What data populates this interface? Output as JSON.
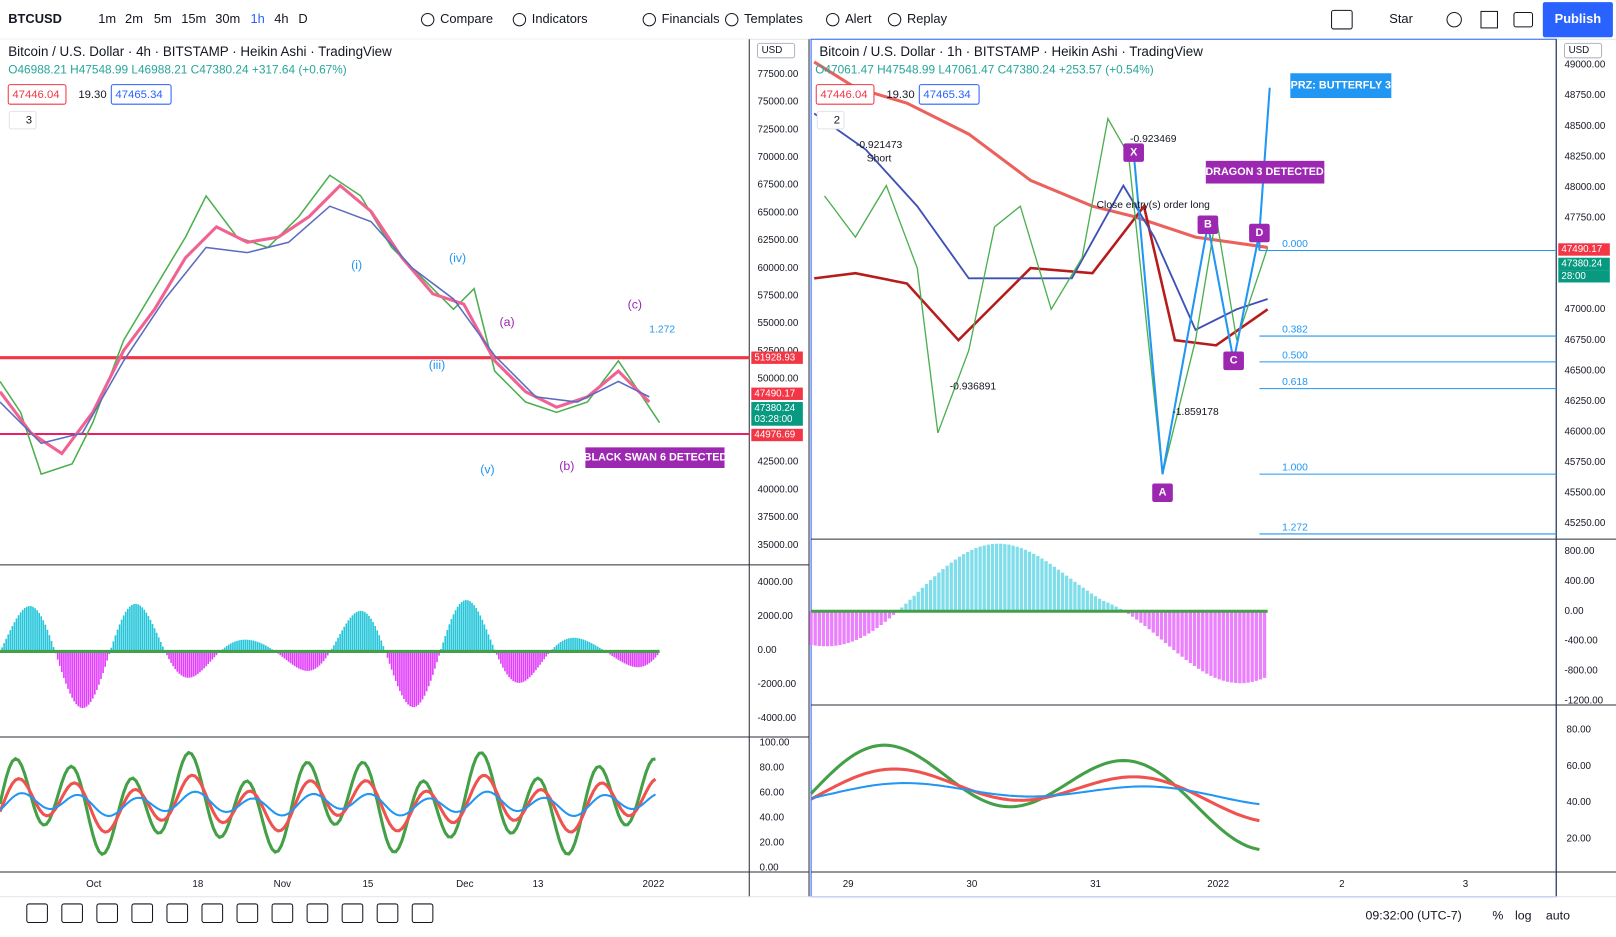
{
  "toolbar": {
    "symbol": "BTCUSD",
    "intervals": [
      "1m",
      "2m",
      "5m",
      "15m",
      "30m",
      "1h",
      "4h",
      "D"
    ],
    "buttons": [
      "Compare",
      "Indicators",
      "Financials",
      "Templates",
      "Alert",
      "Replay"
    ],
    "star": "Star",
    "publish": "Publish"
  },
  "left": {
    "title": "Bitcoin / U.S. Dollar · 4h · BITSTAMP · Heikin Ashi · TradingView",
    "ohlc": "O46988.21 H47548.99 L46988.21 C47380.24 +317.64 (+0.67%)",
    "badges": [
      "47446.04",
      "19.30",
      "47465.34"
    ],
    "count": "3",
    "currency": "USD",
    "price_axis": [
      "77500.00",
      "75000.00",
      "72500.00",
      "70000.00",
      "67500.00",
      "65000.00",
      "62500.00",
      "60000.00",
      "57500.00",
      "55000.00",
      "52500.00",
      "50000.00",
      "47500.00",
      "45000.00",
      "42500.00",
      "40000.00",
      "37500.00",
      "35000.00"
    ],
    "osc_axis": [
      "4000.00",
      "2000.00",
      "0.00",
      "-2000.00",
      "-4000.00"
    ],
    "rsi_axis": [
      "100.00",
      "80.00",
      "60.00",
      "40.00",
      "20.00",
      "0.00"
    ],
    "time_axis": [
      "Oct",
      "18",
      "Nov",
      "15",
      "Dec",
      "13",
      "2022"
    ],
    "tags": [
      {
        "text": "51928.93",
        "color": "#f23645"
      },
      {
        "text": "47490.17",
        "color": "#f23645"
      },
      {
        "text": "47380.24",
        "color": "#089981"
      },
      {
        "text": "03:28:00",
        "color": "#089981"
      },
      {
        "text": "44976.69",
        "color": "#f23645"
      }
    ],
    "annotations": [
      "BLACK SWAN 6 DETECTED",
      "(iii)",
      "(v)",
      "(i)",
      "(iv)",
      "(a)",
      "(b)",
      "(c)",
      "1.272"
    ]
  },
  "right": {
    "title": "Bitcoin / U.S. Dollar · 1h · BITSTAMP · Heikin Ashi · TradingView",
    "ohlc": "O47061.47 H47548.99 L47061.47 C47380.24 +253.57 (+0.54%)",
    "badges": [
      "47446.04",
      "19.30",
      "47465.34"
    ],
    "count": "2",
    "currency": "USD",
    "price_axis": [
      "49000.00",
      "48750.00",
      "48500.00",
      "48250.00",
      "48000.00",
      "47750.00",
      "47500.00",
      "47250.00",
      "47000.00",
      "46750.00",
      "46500.00",
      "46250.00",
      "46000.00",
      "45750.00",
      "45500.00",
      "45250.00"
    ],
    "osc_axis": [
      "800.00",
      "400.00",
      "0.00",
      "-400.00",
      "-800.00",
      "-1200.00"
    ],
    "rsi_axis": [
      "80.00",
      "60.00",
      "40.00",
      "20.00"
    ],
    "time_axis": [
      "29",
      "30",
      "31",
      "2022",
      "2",
      "3"
    ],
    "tags": [
      {
        "text": "47490.17",
        "color": "#f23645"
      },
      {
        "text": "47380.24",
        "color": "#089981"
      },
      {
        "text": "28:00",
        "color": "#089981"
      }
    ],
    "annotations": [
      "PRZ: BUTTERFLY 3",
      "DRAGON 3 DETECTED",
      "-0.921473",
      "Short",
      "-0.923469",
      "Close entry(s) order long",
      "-0.936891",
      "-1.859178"
    ],
    "pattern_points": [
      "X",
      "A",
      "B",
      "C",
      "D"
    ],
    "fib_levels": [
      "0.000",
      "0.382",
      "0.500",
      "0.618",
      "1.000",
      "1.272"
    ]
  },
  "status": {
    "time": "09:32:00 (UTC-7)",
    "options": [
      "%",
      "log",
      "auto"
    ]
  }
}
